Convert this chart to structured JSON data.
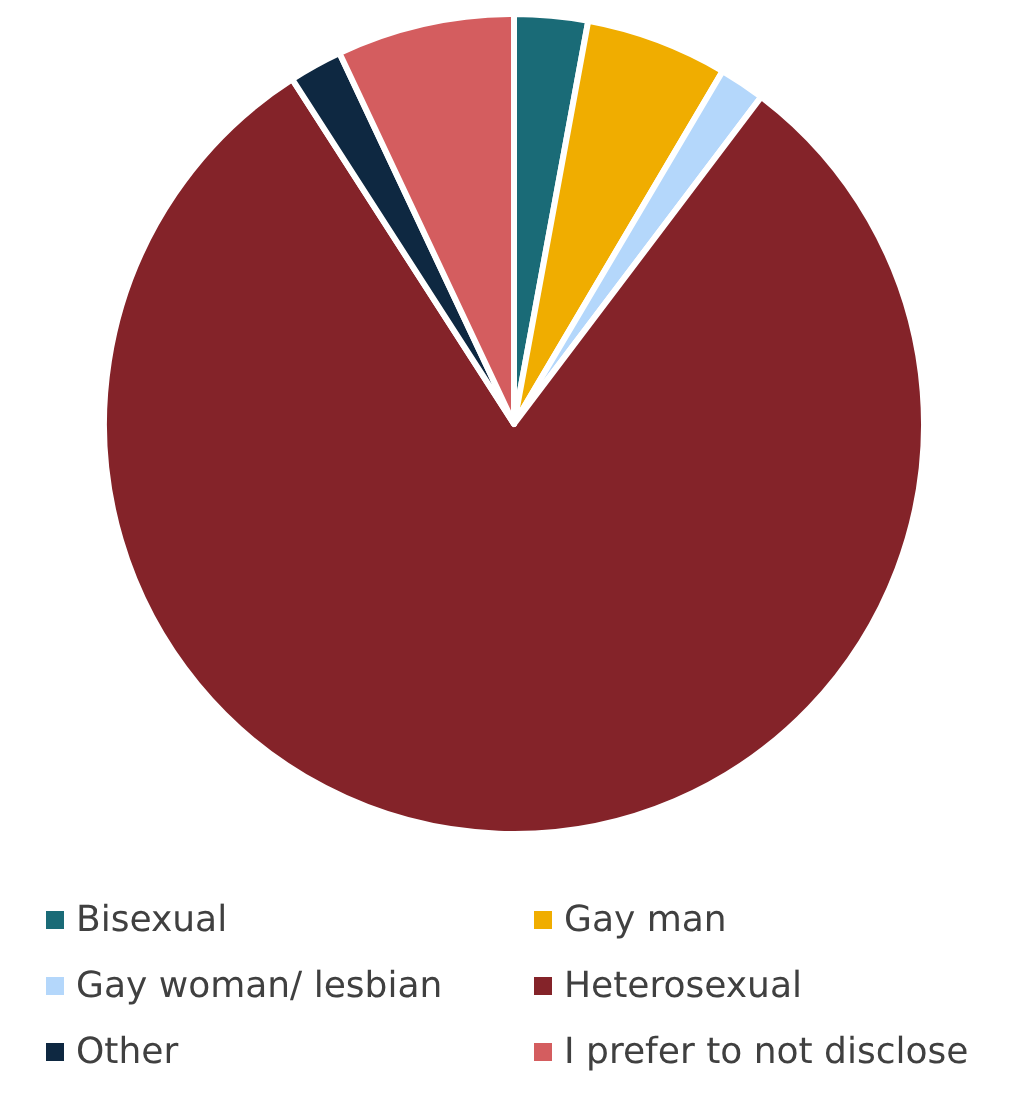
{
  "chart_data": {
    "type": "pie",
    "categories": [
      "Bisexual",
      "Gay man",
      "Gay woman/ lesbian",
      "Heterosexual",
      "Other",
      "I prefer to not disclose"
    ],
    "values": [
      2.9,
      5.6,
      1.8,
      80.6,
      2.1,
      7.0
    ],
    "colors": [
      "#1a6b77",
      "#f0ad00",
      "#b4d7fb",
      "#842329",
      "#0e2841",
      "#d45d5f"
    ],
    "legend": "bottom"
  }
}
